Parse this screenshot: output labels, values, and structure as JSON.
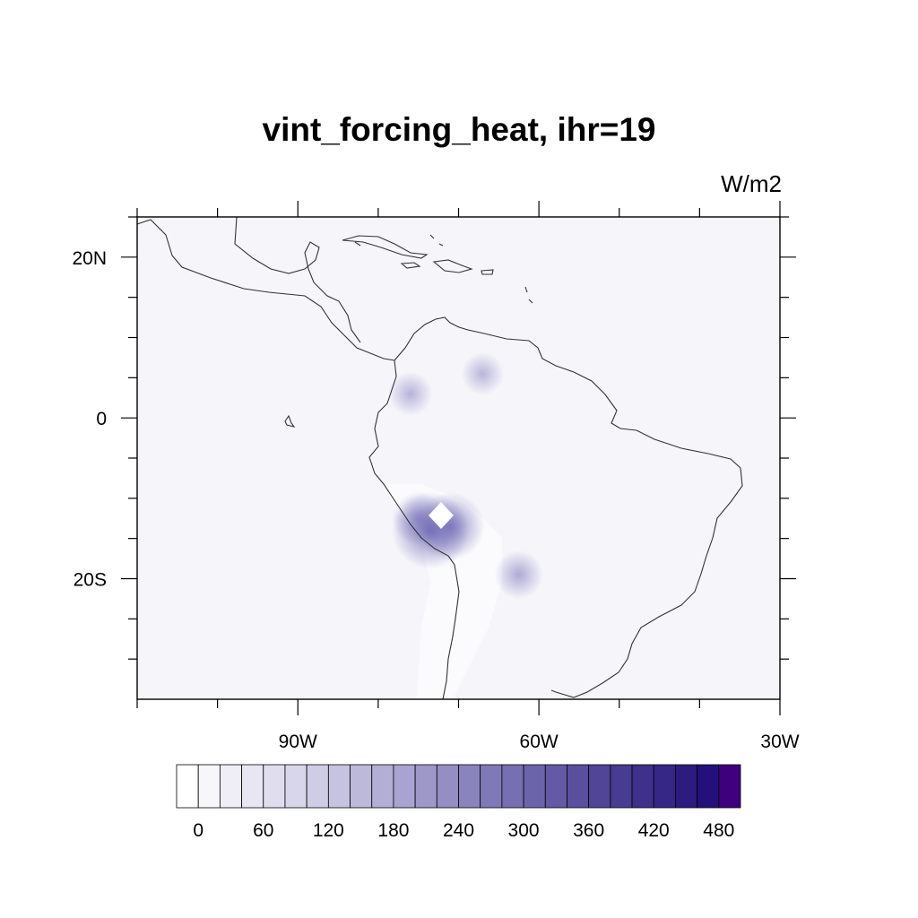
{
  "title": "vint_forcing_heat, ihr=19",
  "units": "W/m2",
  "map": {
    "lon_range": [
      -110,
      -30
    ],
    "lat_range": [
      -35,
      25
    ],
    "lon_ticks": [
      {
        "value": -90,
        "label": "90W"
      },
      {
        "value": -60,
        "label": "60W"
      },
      {
        "value": -30,
        "label": "30W"
      }
    ],
    "lat_ticks": [
      {
        "value": 20,
        "label": "20N"
      },
      {
        "value": 0,
        "label": "0"
      },
      {
        "value": -20,
        "label": "20S"
      }
    ],
    "background_color": "#f6f5fa",
    "coastline_color": "#333333",
    "features": [
      {
        "lon": -75.0,
        "lat": -12.5,
        "value": 140
      },
      {
        "lon": -73.5,
        "lat": -14.0,
        "value": 300
      },
      {
        "lon": -71.0,
        "lat": -13.5,
        "value": 240
      },
      {
        "lon": -76.0,
        "lat": 3.0,
        "value": 80
      },
      {
        "lon": -67.0,
        "lat": 5.5,
        "value": 70
      },
      {
        "lon": -62.5,
        "lat": -19.5,
        "value": 110
      }
    ]
  },
  "colorbar": {
    "levels": [
      0,
      20,
      40,
      60,
      80,
      100,
      120,
      140,
      160,
      180,
      200,
      220,
      240,
      260,
      280,
      300,
      320,
      340,
      360,
      380,
      400,
      420,
      440,
      460,
      480,
      500
    ],
    "labels": [
      "0",
      "60",
      "120",
      "180",
      "240",
      "300",
      "360",
      "420",
      "480"
    ],
    "colors": [
      "#ffffff",
      "#f7f6fb",
      "#efeef6",
      "#e8e6f2",
      "#e0deee",
      "#d8d6ea",
      "#cfcde6",
      "#c6c3e0",
      "#bcb9da",
      "#b2aed5",
      "#a8a3cf",
      "#9e98c9",
      "#948ec3",
      "#8a84bd",
      "#8079b7",
      "#766fb1",
      "#6c64aa",
      "#6359a4",
      "#5a4f9e",
      "#514598",
      "#483b92",
      "#3f308c",
      "#362686",
      "#2d1b80",
      "#24107a",
      "#3f007d"
    ]
  }
}
